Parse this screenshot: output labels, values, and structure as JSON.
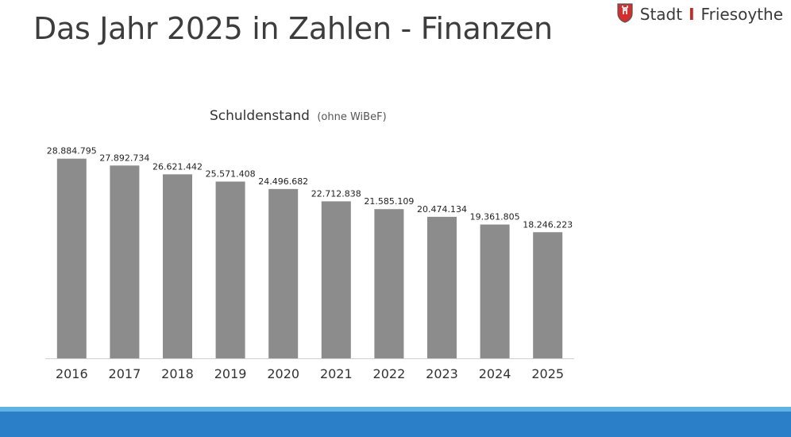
{
  "page": {
    "title": "Das Jahr 2025 in Zahlen - Finanzen"
  },
  "brand": {
    "name": "Stadt",
    "separator": "I",
    "city": "Friesoythe",
    "logo_icon": "coat-of-arms-icon"
  },
  "colors": {
    "bar": "#8c8c8c",
    "axis": "#d0d0d0",
    "band_light": "#5fb3e3",
    "band_dark": "#2a7fc8",
    "brand_accent": "#c62828"
  },
  "chart_data": {
    "type": "bar",
    "title": "Schuldenstand",
    "subtitle": "(ohne WiBeF)",
    "categories": [
      "2016",
      "2017",
      "2018",
      "2019",
      "2020",
      "2021",
      "2022",
      "2023",
      "2024",
      "2025"
    ],
    "values": [
      28884795,
      27892734,
      26621442,
      25571408,
      24496682,
      22712838,
      21585109,
      20474134,
      19361805,
      18246223
    ],
    "value_labels": [
      "28.884.795",
      "27.892.734",
      "26.621.442",
      "25.571.408",
      "24.496.682",
      "22.712.838",
      "21.585.109",
      "20.474.134",
      "19.361.805",
      "18.246.223"
    ],
    "ylim": [
      0,
      30000000
    ],
    "grid": false,
    "legend": "none"
  }
}
